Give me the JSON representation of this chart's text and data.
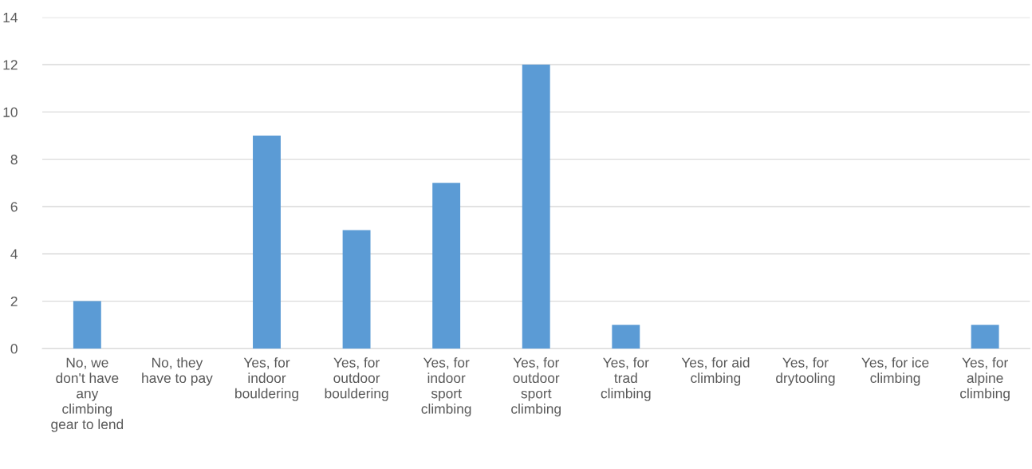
{
  "chart_data": {
    "type": "bar",
    "categories": [
      "No, we\ndon't have\nany\nclimbing\ngear to lend",
      "No, they\nhave to pay",
      "Yes, for\nindoor\nbouldering",
      "Yes, for\noutdoor\nbouldering",
      "Yes, for\nindoor\nsport\nclimbing",
      "Yes, for\noutdoor\nsport\nclimbing",
      "Yes, for\ntrad\nclimbing",
      "Yes, for aid\nclimbing",
      "Yes, for\ndrytooling",
      "Yes, for ice\nclimbing",
      "Yes, for\nalpine\nclimbing"
    ],
    "values": [
      2,
      0,
      9,
      5,
      7,
      12,
      1,
      0,
      0,
      0,
      1
    ],
    "color": "#5b9bd5",
    "ylim": [
      0,
      14
    ],
    "yticks": [
      0,
      2,
      4,
      6,
      8,
      10,
      12,
      14
    ],
    "grid": "y",
    "legend": false
  }
}
